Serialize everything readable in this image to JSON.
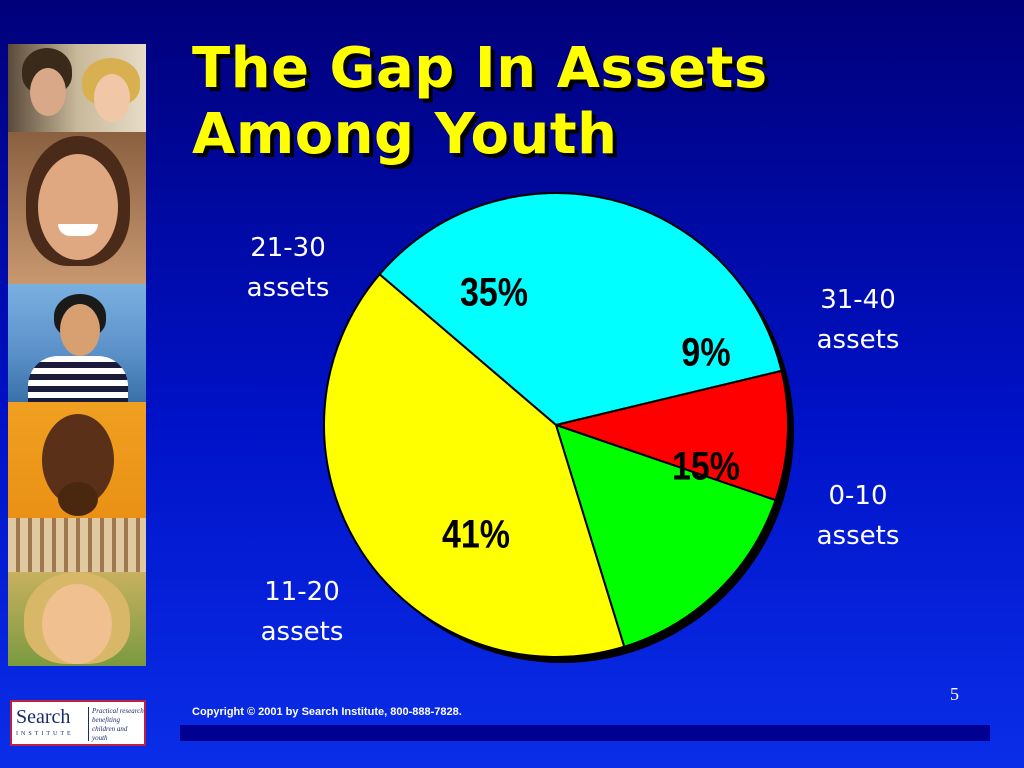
{
  "title_lines": [
    "The Gap In Assets",
    "Among Youth"
  ],
  "chart_data": {
    "type": "pie",
    "title": "The Gap In Assets Among Youth",
    "categories": [
      "21-30 assets",
      "31-40 assets",
      "0-10 assets",
      "11-20 assets"
    ],
    "values": [
      35,
      9,
      15,
      41
    ],
    "value_labels": [
      "35%",
      "9%",
      "15%",
      "41%"
    ],
    "colors": [
      "#00ffff",
      "#ff0000",
      "#00ff00",
      "#ffff00"
    ],
    "legend": "labels beside slices"
  },
  "slice_labels": {
    "s2130": [
      "21-30",
      "assets"
    ],
    "s3140": [
      "31-40",
      "assets"
    ],
    "s010": [
      "0-10",
      "assets"
    ],
    "s1120": [
      "11-20",
      "assets"
    ]
  },
  "page_number": "5",
  "copyright": "Copyright © 2001 by Search Institute, 800-888-7828.",
  "logo": {
    "word": "Search",
    "sub": "INSTITUTE",
    "tagline": "Practical research benefiting children and youth"
  },
  "photos": [
    "teen-couple-photo",
    "smiling-girl-photo",
    "boy-by-water-photo",
    "thinking-boy-photo",
    "smiling-blonde-girl-photo"
  ]
}
